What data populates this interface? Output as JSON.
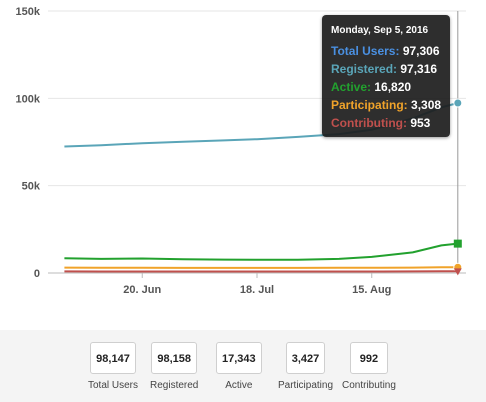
{
  "chart_data": {
    "type": "line",
    "x_ticks": [
      "20. Jun",
      "18. Jul",
      "15. Aug"
    ],
    "y_ticks": [
      "150k",
      "100k",
      "50k",
      "0"
    ],
    "ylim": [
      0,
      150000
    ],
    "grid": true,
    "x_dates": [
      "2016-06-01",
      "2016-06-10",
      "2016-06-20",
      "2016-06-30",
      "2016-07-10",
      "2016-07-18",
      "2016-07-28",
      "2016-08-07",
      "2016-08-15",
      "2016-08-25",
      "2016-09-01",
      "2016-09-05"
    ],
    "series": [
      {
        "name": "Registered",
        "color": "#5aa5b8",
        "marker": "circle",
        "values": [
          72400,
          73100,
          74300,
          75200,
          75900,
          76600,
          77900,
          79500,
          82000,
          88500,
          94800,
          97316
        ]
      },
      {
        "name": "Active",
        "color": "#22a12e",
        "marker": "square",
        "values": [
          8400,
          8100,
          8300,
          7900,
          7700,
          7600,
          7600,
          8100,
          9200,
          11800,
          15800,
          16820
        ]
      },
      {
        "name": "Participating",
        "color": "#f0a32a",
        "marker": "circle",
        "values": [
          3100,
          3000,
          3000,
          2900,
          2900,
          2900,
          2900,
          3000,
          3000,
          3100,
          3300,
          3308
        ]
      },
      {
        "name": "Contributing",
        "color": "#c0504d",
        "marker": "triangle",
        "values": [
          900,
          880,
          870,
          860,
          850,
          850,
          860,
          870,
          880,
          910,
          950,
          953
        ]
      }
    ]
  },
  "tooltip": {
    "date": "Monday, Sep 5, 2016",
    "rows": [
      {
        "label": "Total Users:",
        "value": "97,306",
        "color": "#4a90e2"
      },
      {
        "label": "Registered:",
        "value": "97,316",
        "color": "#5aa5b8"
      },
      {
        "label": "Active:",
        "value": "16,820",
        "color": "#22a12e"
      },
      {
        "label": "Participating:",
        "value": "3,308",
        "color": "#f0a32a"
      },
      {
        "label": "Contributing:",
        "value": "953",
        "color": "#c0504d"
      }
    ]
  },
  "stats": [
    {
      "value": "98,147",
      "label": "Total Users"
    },
    {
      "value": "98,158",
      "label": "Registered"
    },
    {
      "value": "17,343",
      "label": "Active"
    },
    {
      "value": "3,427",
      "label": "Participating"
    },
    {
      "value": "992",
      "label": "Contributing"
    }
  ]
}
